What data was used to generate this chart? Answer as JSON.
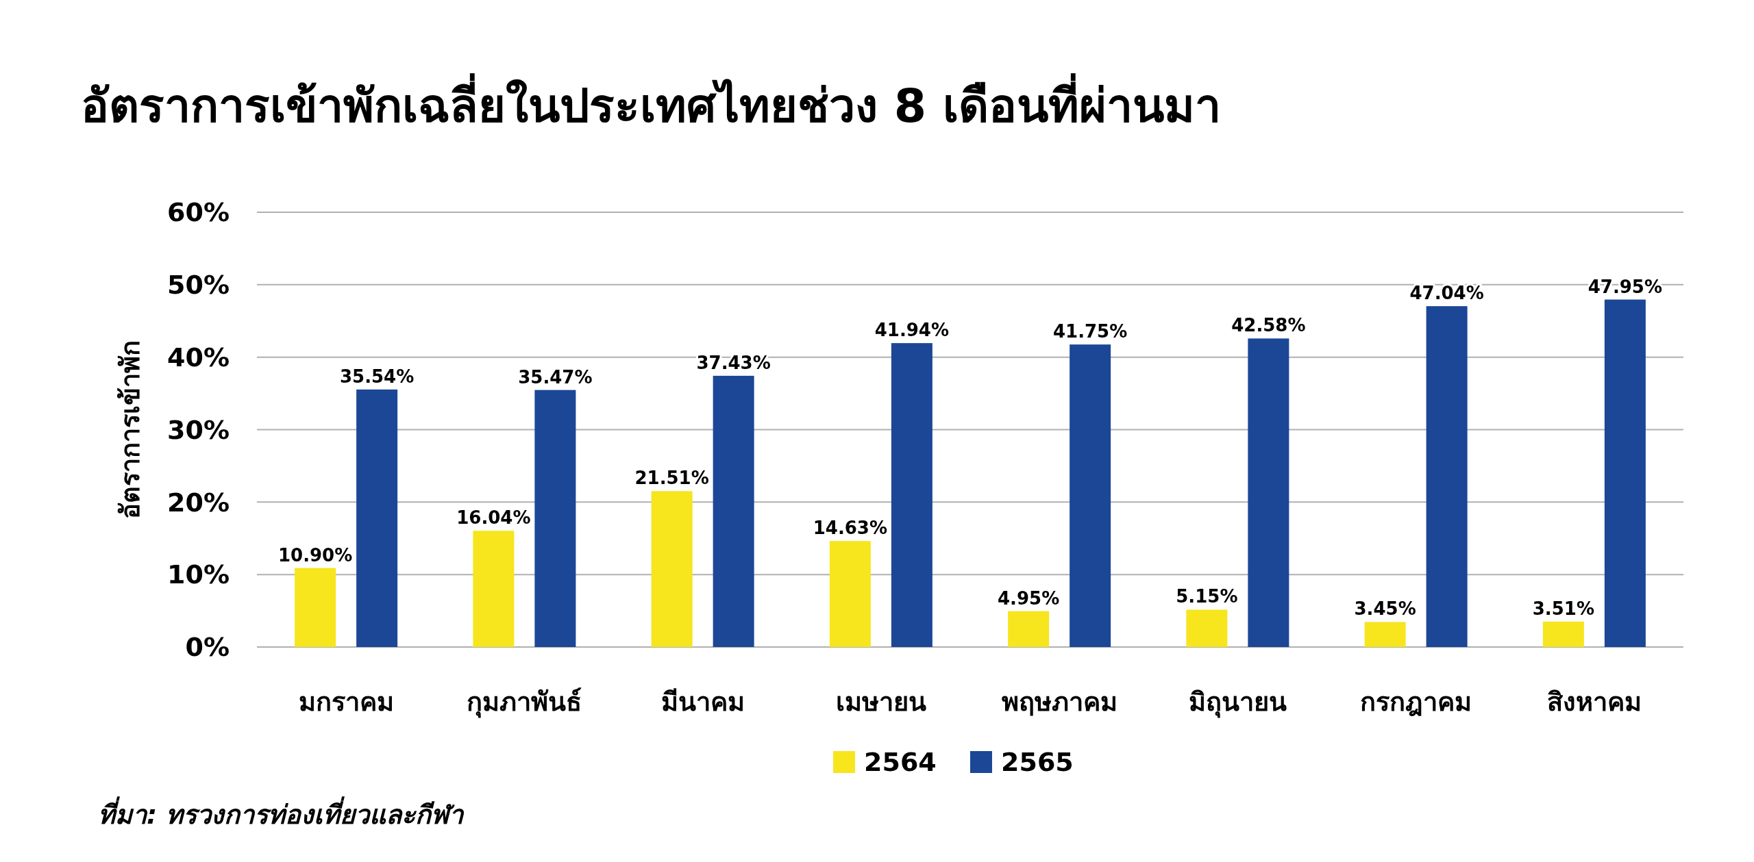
{
  "chart_data": {
    "type": "bar",
    "title": "อัตราการเข้าพักเฉลี่ยในประเทศไทยช่วง 8 เดือนที่ผ่านมา",
    "ylabel": "อัตราการเข้าพัก",
    "categories": [
      "มกราคม",
      "กุมภาพันธ์",
      "มีนาคม",
      "เมษายน",
      "พฤษภาคม",
      "มิถุนายน",
      "กรกฎาคม",
      "สิงหาคม"
    ],
    "series": [
      {
        "name": "2564",
        "color": "#f7e51e",
        "values": [
          10.9,
          16.04,
          21.51,
          14.63,
          4.95,
          5.15,
          3.45,
          3.51
        ],
        "value_labels": [
          "10.90%",
          "16.04%",
          "21.51%",
          "14.63%",
          "4.95%",
          "5.15%",
          "3.45%",
          "3.51%"
        ]
      },
      {
        "name": "2565",
        "color": "#1b4796",
        "values": [
          35.54,
          35.47,
          37.43,
          41.94,
          41.75,
          42.58,
          47.04,
          47.95
        ],
        "value_labels": [
          "35.54%",
          "35.47%",
          "37.43%",
          "41.94%",
          "41.75%",
          "42.58%",
          "47.04%",
          "47.95%"
        ]
      }
    ],
    "ylim": [
      0,
      60
    ],
    "yticks": [
      {
        "value": 0,
        "label": "0%"
      },
      {
        "value": 10,
        "label": "10%"
      },
      {
        "value": 20,
        "label": "20%"
      },
      {
        "value": 30,
        "label": "30%"
      },
      {
        "value": 40,
        "label": "40%"
      },
      {
        "value": 50,
        "label": "50%"
      },
      {
        "value": 60,
        "label": "60%"
      }
    ],
    "grid": "y",
    "legend": "bottom",
    "annotations": [
      "ที่มา: ทรวงการท่องเที่ยวและกีฬา"
    ]
  }
}
